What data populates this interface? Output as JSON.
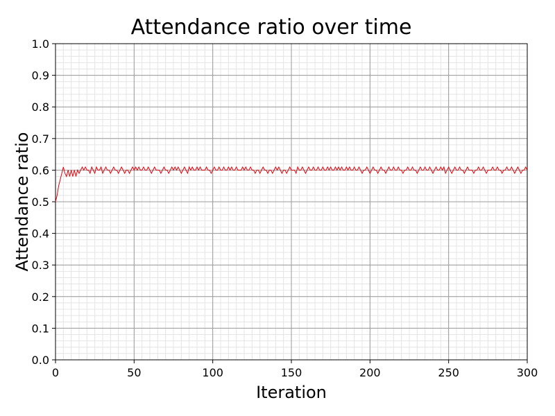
{
  "chart_data": {
    "type": "line",
    "title": "Attendance ratio over time",
    "xlabel": "Iteration",
    "ylabel": "Attendance ratio",
    "xlim": [
      0,
      300
    ],
    "ylim": [
      0.0,
      1.0
    ],
    "x_ticks": [
      "0",
      "50",
      "100",
      "150",
      "200",
      "250",
      "300"
    ],
    "y_ticks": [
      "0.0",
      "0.1",
      "0.2",
      "0.3",
      "0.4",
      "0.5",
      "0.6",
      "0.7",
      "0.8",
      "0.9",
      "1.0"
    ],
    "grid": true,
    "minor_grid": true,
    "legend": false,
    "series": [
      {
        "color": "#e8000b",
        "x_start": 0,
        "x_step": 1,
        "values": [
          0.5,
          0.52,
          0.55,
          0.57,
          0.59,
          0.61,
          0.59,
          0.58,
          0.6,
          0.58,
          0.6,
          0.58,
          0.6,
          0.58,
          0.6,
          0.59,
          0.6,
          0.61,
          0.6,
          0.61,
          0.6,
          0.6,
          0.59,
          0.61,
          0.6,
          0.59,
          0.61,
          0.6,
          0.6,
          0.61,
          0.59,
          0.6,
          0.61,
          0.6,
          0.6,
          0.59,
          0.6,
          0.61,
          0.6,
          0.6,
          0.59,
          0.6,
          0.61,
          0.6,
          0.59,
          0.6,
          0.6,
          0.59,
          0.6,
          0.61,
          0.6,
          0.61,
          0.6,
          0.61,
          0.6,
          0.6,
          0.61,
          0.6,
          0.6,
          0.61,
          0.6,
          0.59,
          0.6,
          0.61,
          0.6,
          0.6,
          0.6,
          0.59,
          0.6,
          0.61,
          0.6,
          0.6,
          0.59,
          0.6,
          0.61,
          0.6,
          0.61,
          0.6,
          0.61,
          0.6,
          0.59,
          0.6,
          0.61,
          0.6,
          0.59,
          0.61,
          0.6,
          0.61,
          0.6,
          0.6,
          0.61,
          0.6,
          0.61,
          0.6,
          0.6,
          0.6,
          0.61,
          0.6,
          0.6,
          0.59,
          0.6,
          0.61,
          0.6,
          0.6,
          0.61,
          0.6,
          0.6,
          0.61,
          0.6,
          0.6,
          0.61,
          0.6,
          0.61,
          0.6,
          0.6,
          0.61,
          0.6,
          0.6,
          0.6,
          0.61,
          0.6,
          0.61,
          0.6,
          0.6,
          0.61,
          0.6,
          0.6,
          0.59,
          0.6,
          0.6,
          0.59,
          0.6,
          0.61,
          0.6,
          0.6,
          0.59,
          0.6,
          0.6,
          0.59,
          0.6,
          0.61,
          0.6,
          0.61,
          0.6,
          0.59,
          0.6,
          0.6,
          0.59,
          0.6,
          0.61,
          0.6,
          0.6,
          0.6,
          0.59,
          0.61,
          0.6,
          0.6,
          0.61,
          0.6,
          0.59,
          0.6,
          0.61,
          0.6,
          0.6,
          0.61,
          0.6,
          0.6,
          0.61,
          0.6,
          0.6,
          0.61,
          0.6,
          0.6,
          0.61,
          0.6,
          0.61,
          0.6,
          0.6,
          0.61,
          0.6,
          0.61,
          0.6,
          0.61,
          0.6,
          0.6,
          0.61,
          0.6,
          0.61,
          0.6,
          0.6,
          0.61,
          0.6,
          0.6,
          0.61,
          0.6,
          0.59,
          0.6,
          0.6,
          0.61,
          0.6,
          0.59,
          0.6,
          0.61,
          0.6,
          0.6,
          0.59,
          0.6,
          0.61,
          0.6,
          0.6,
          0.59,
          0.6,
          0.61,
          0.6,
          0.6,
          0.61,
          0.6,
          0.6,
          0.61,
          0.6,
          0.6,
          0.59,
          0.6,
          0.6,
          0.61,
          0.6,
          0.6,
          0.61,
          0.6,
          0.6,
          0.59,
          0.6,
          0.61,
          0.6,
          0.6,
          0.61,
          0.6,
          0.6,
          0.61,
          0.6,
          0.59,
          0.6,
          0.61,
          0.6,
          0.6,
          0.61,
          0.6,
          0.61,
          0.59,
          0.6,
          0.61,
          0.6,
          0.59,
          0.6,
          0.61,
          0.6,
          0.6,
          0.61,
          0.6,
          0.6,
          0.59,
          0.6,
          0.61,
          0.6,
          0.6,
          0.6,
          0.59,
          0.6,
          0.6,
          0.61,
          0.6,
          0.6,
          0.61,
          0.6,
          0.59,
          0.6,
          0.6,
          0.6,
          0.61,
          0.6,
          0.6,
          0.61,
          0.6,
          0.6,
          0.59,
          0.6,
          0.6,
          0.61,
          0.6,
          0.6,
          0.61,
          0.6,
          0.59,
          0.6,
          0.61,
          0.6,
          0.59,
          0.6,
          0.6,
          0.61,
          0.6
        ]
      }
    ]
  }
}
